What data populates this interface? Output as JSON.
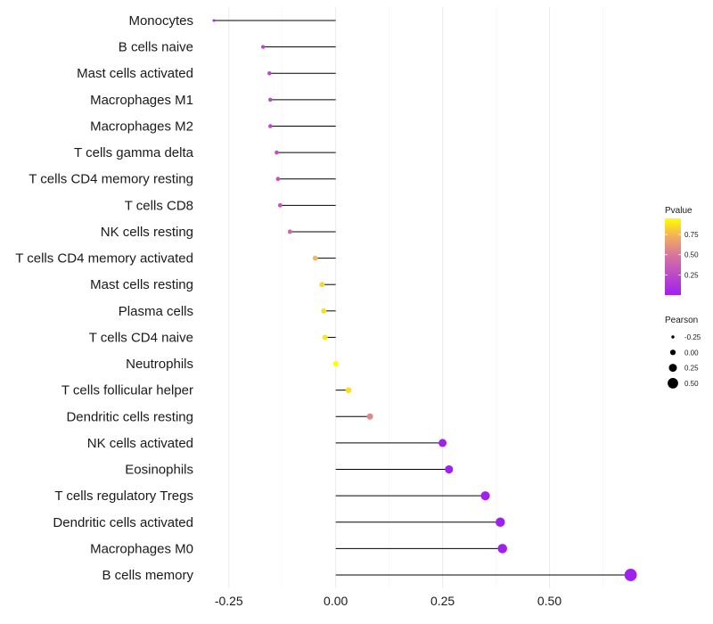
{
  "chart_data": {
    "type": "lollipop",
    "categories": [
      "Monocytes",
      "B cells naive",
      "Mast cells activated",
      "Macrophages M1",
      "Macrophages M2",
      "T cells gamma delta",
      "T cells CD4 memory resting",
      "T cells CD8",
      "NK cells resting",
      "T cells CD4 memory activated",
      "Mast cells resting",
      "Plasma cells",
      "T cells CD4 naive",
      "Neutrophils",
      "T cells follicular helper",
      "Dendritic cells resting",
      "NK cells activated",
      "Eosinophils",
      "T cells regulatory  Tregs ",
      "Dendritic cells activated",
      "Macrophages M0",
      "B cells memory"
    ],
    "pearson": [
      -0.285,
      -0.17,
      -0.155,
      -0.153,
      -0.153,
      -0.138,
      -0.135,
      -0.13,
      -0.107,
      -0.048,
      -0.032,
      -0.028,
      -0.025,
      0.0,
      0.03,
      0.08,
      0.25,
      0.265,
      0.35,
      0.385,
      0.39,
      0.69
    ],
    "pvalue": [
      0.06,
      0.22,
      0.24,
      0.24,
      0.24,
      0.29,
      0.3,
      0.31,
      0.42,
      0.76,
      0.84,
      0.86,
      0.88,
      0.99,
      0.86,
      0.58,
      0.0,
      0.0,
      0.0,
      0.0,
      0.0,
      0.0
    ],
    "xlim": [
      -0.31,
      0.72
    ],
    "xticks": [
      -0.25,
      0.0,
      0.25,
      0.5
    ],
    "xtick_labels": [
      "-0.25",
      "0.00",
      "0.25",
      "0.50"
    ],
    "colors": {
      "low": "#a020f0",
      "high": "#ffff00",
      "stem": "#000000",
      "grid": "#ebebeb"
    },
    "legend": {
      "color": {
        "title": "Pvalue",
        "ticks": [
          0.25,
          0.5,
          0.75
        ],
        "tick_labels": [
          "0.25",
          "0.50",
          "0.75"
        ],
        "min": 0,
        "max": 0.95
      },
      "size": {
        "title": "Pearson",
        "values": [
          -0.25,
          0.0,
          0.25,
          0.5
        ],
        "labels": [
          "-0.25",
          "0.00",
          "0.25",
          "0.50"
        ]
      }
    }
  }
}
